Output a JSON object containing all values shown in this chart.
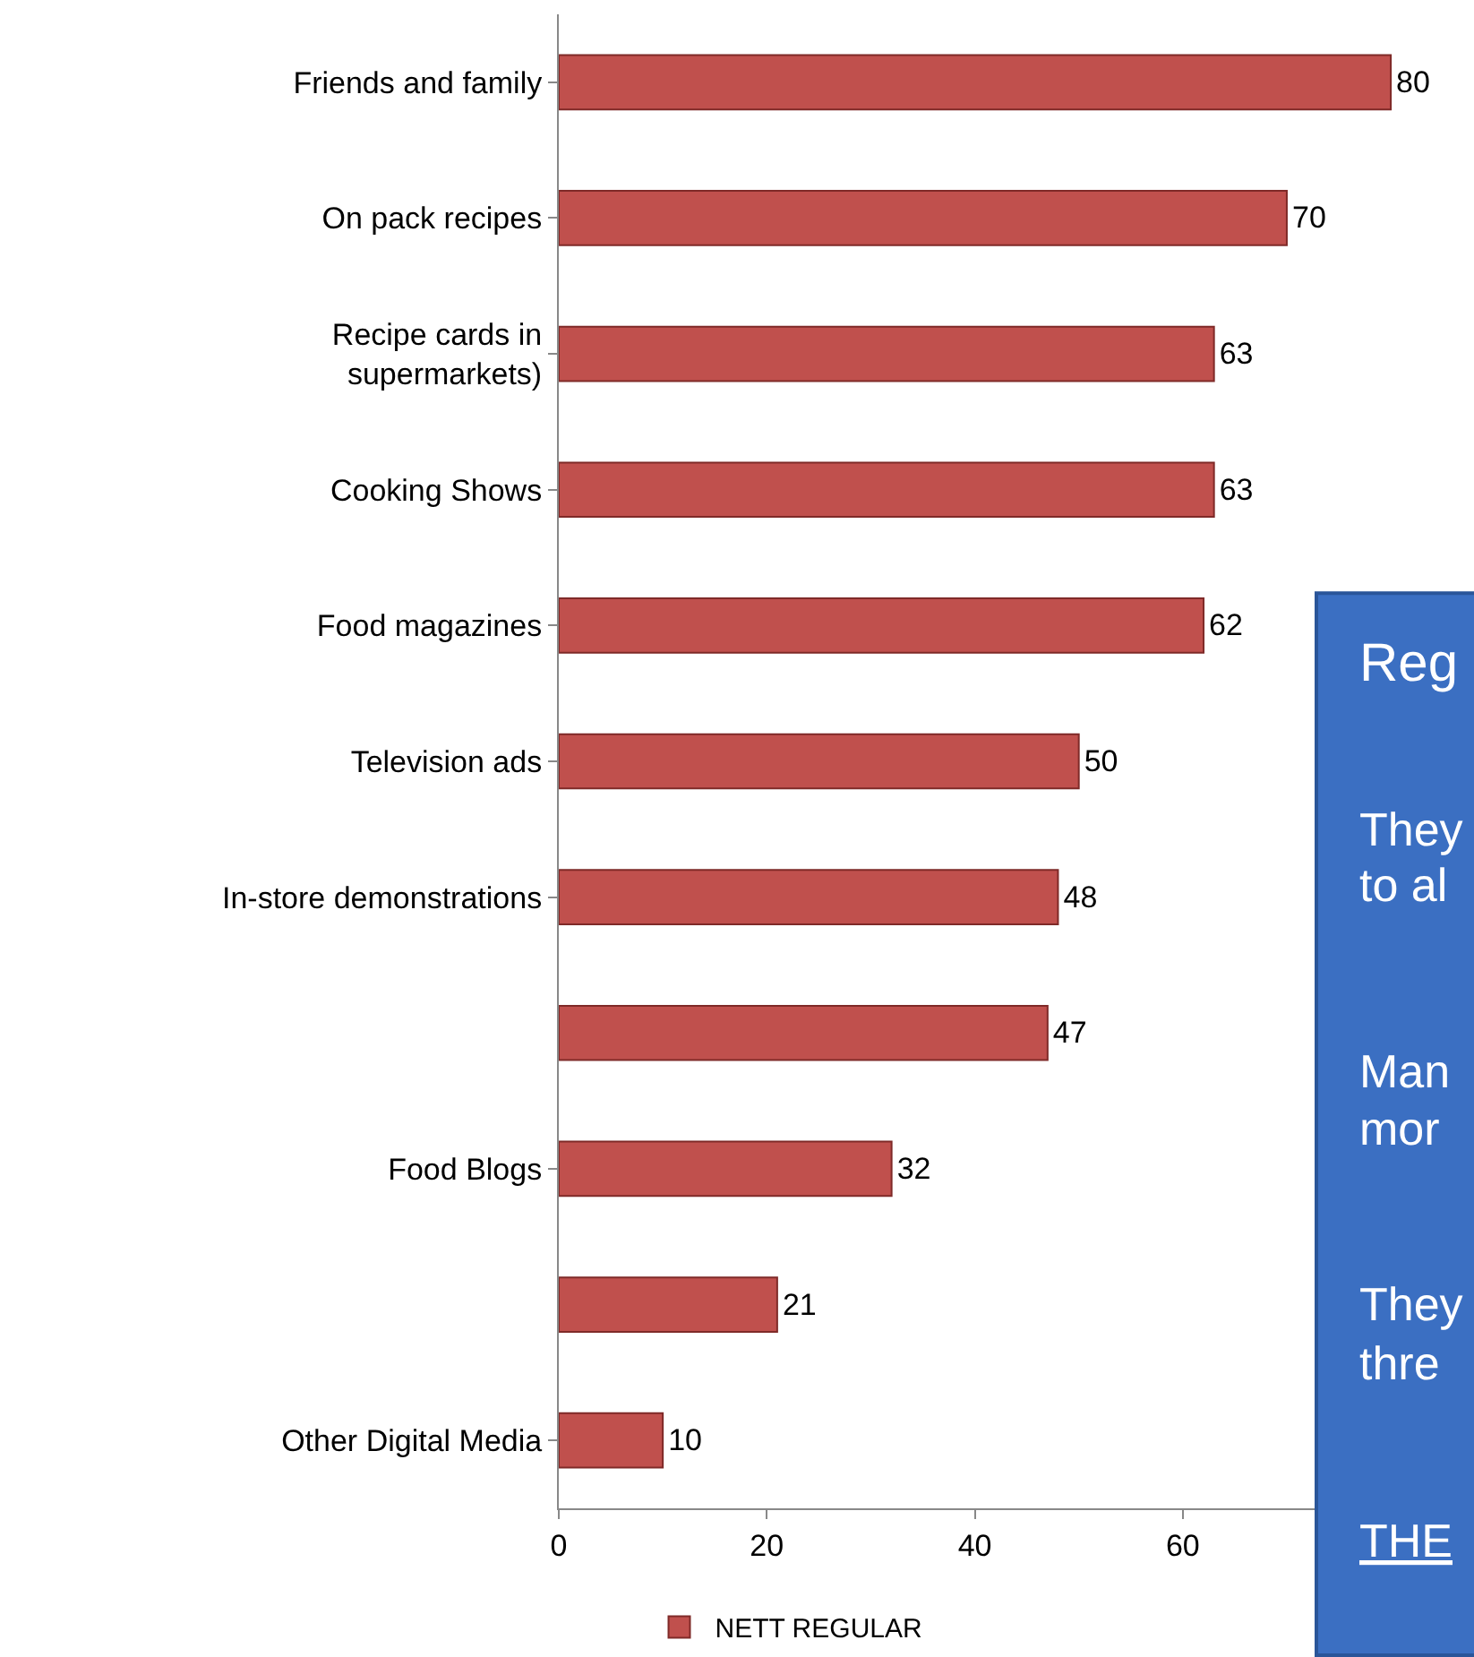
{
  "chart_data": {
    "type": "bar",
    "orientation": "horizontal",
    "categories": [
      "Friends and family",
      "On pack recipes",
      "Recipe cards in\nsupermarkets)",
      "Cooking Shows",
      "Food magazines",
      "Television ads",
      "In-store demonstrations",
      null,
      "Food Blogs",
      null,
      "Other Digital Media"
    ],
    "series": [
      {
        "name": "NETT REGULAR",
        "color": "#c0504d",
        "values": [
          80,
          70,
          63,
          63,
          62,
          50,
          48,
          47,
          32,
          21,
          10
        ]
      }
    ],
    "data_labels": true,
    "xlim": [
      0,
      88
    ],
    "xticks": [
      0,
      20,
      40,
      60
    ],
    "legend": "bottom",
    "annotations": [
      "Reg",
      "They",
      "to al",
      "Man",
      "mor",
      "They",
      "thre",
      "THE"
    ]
  }
}
